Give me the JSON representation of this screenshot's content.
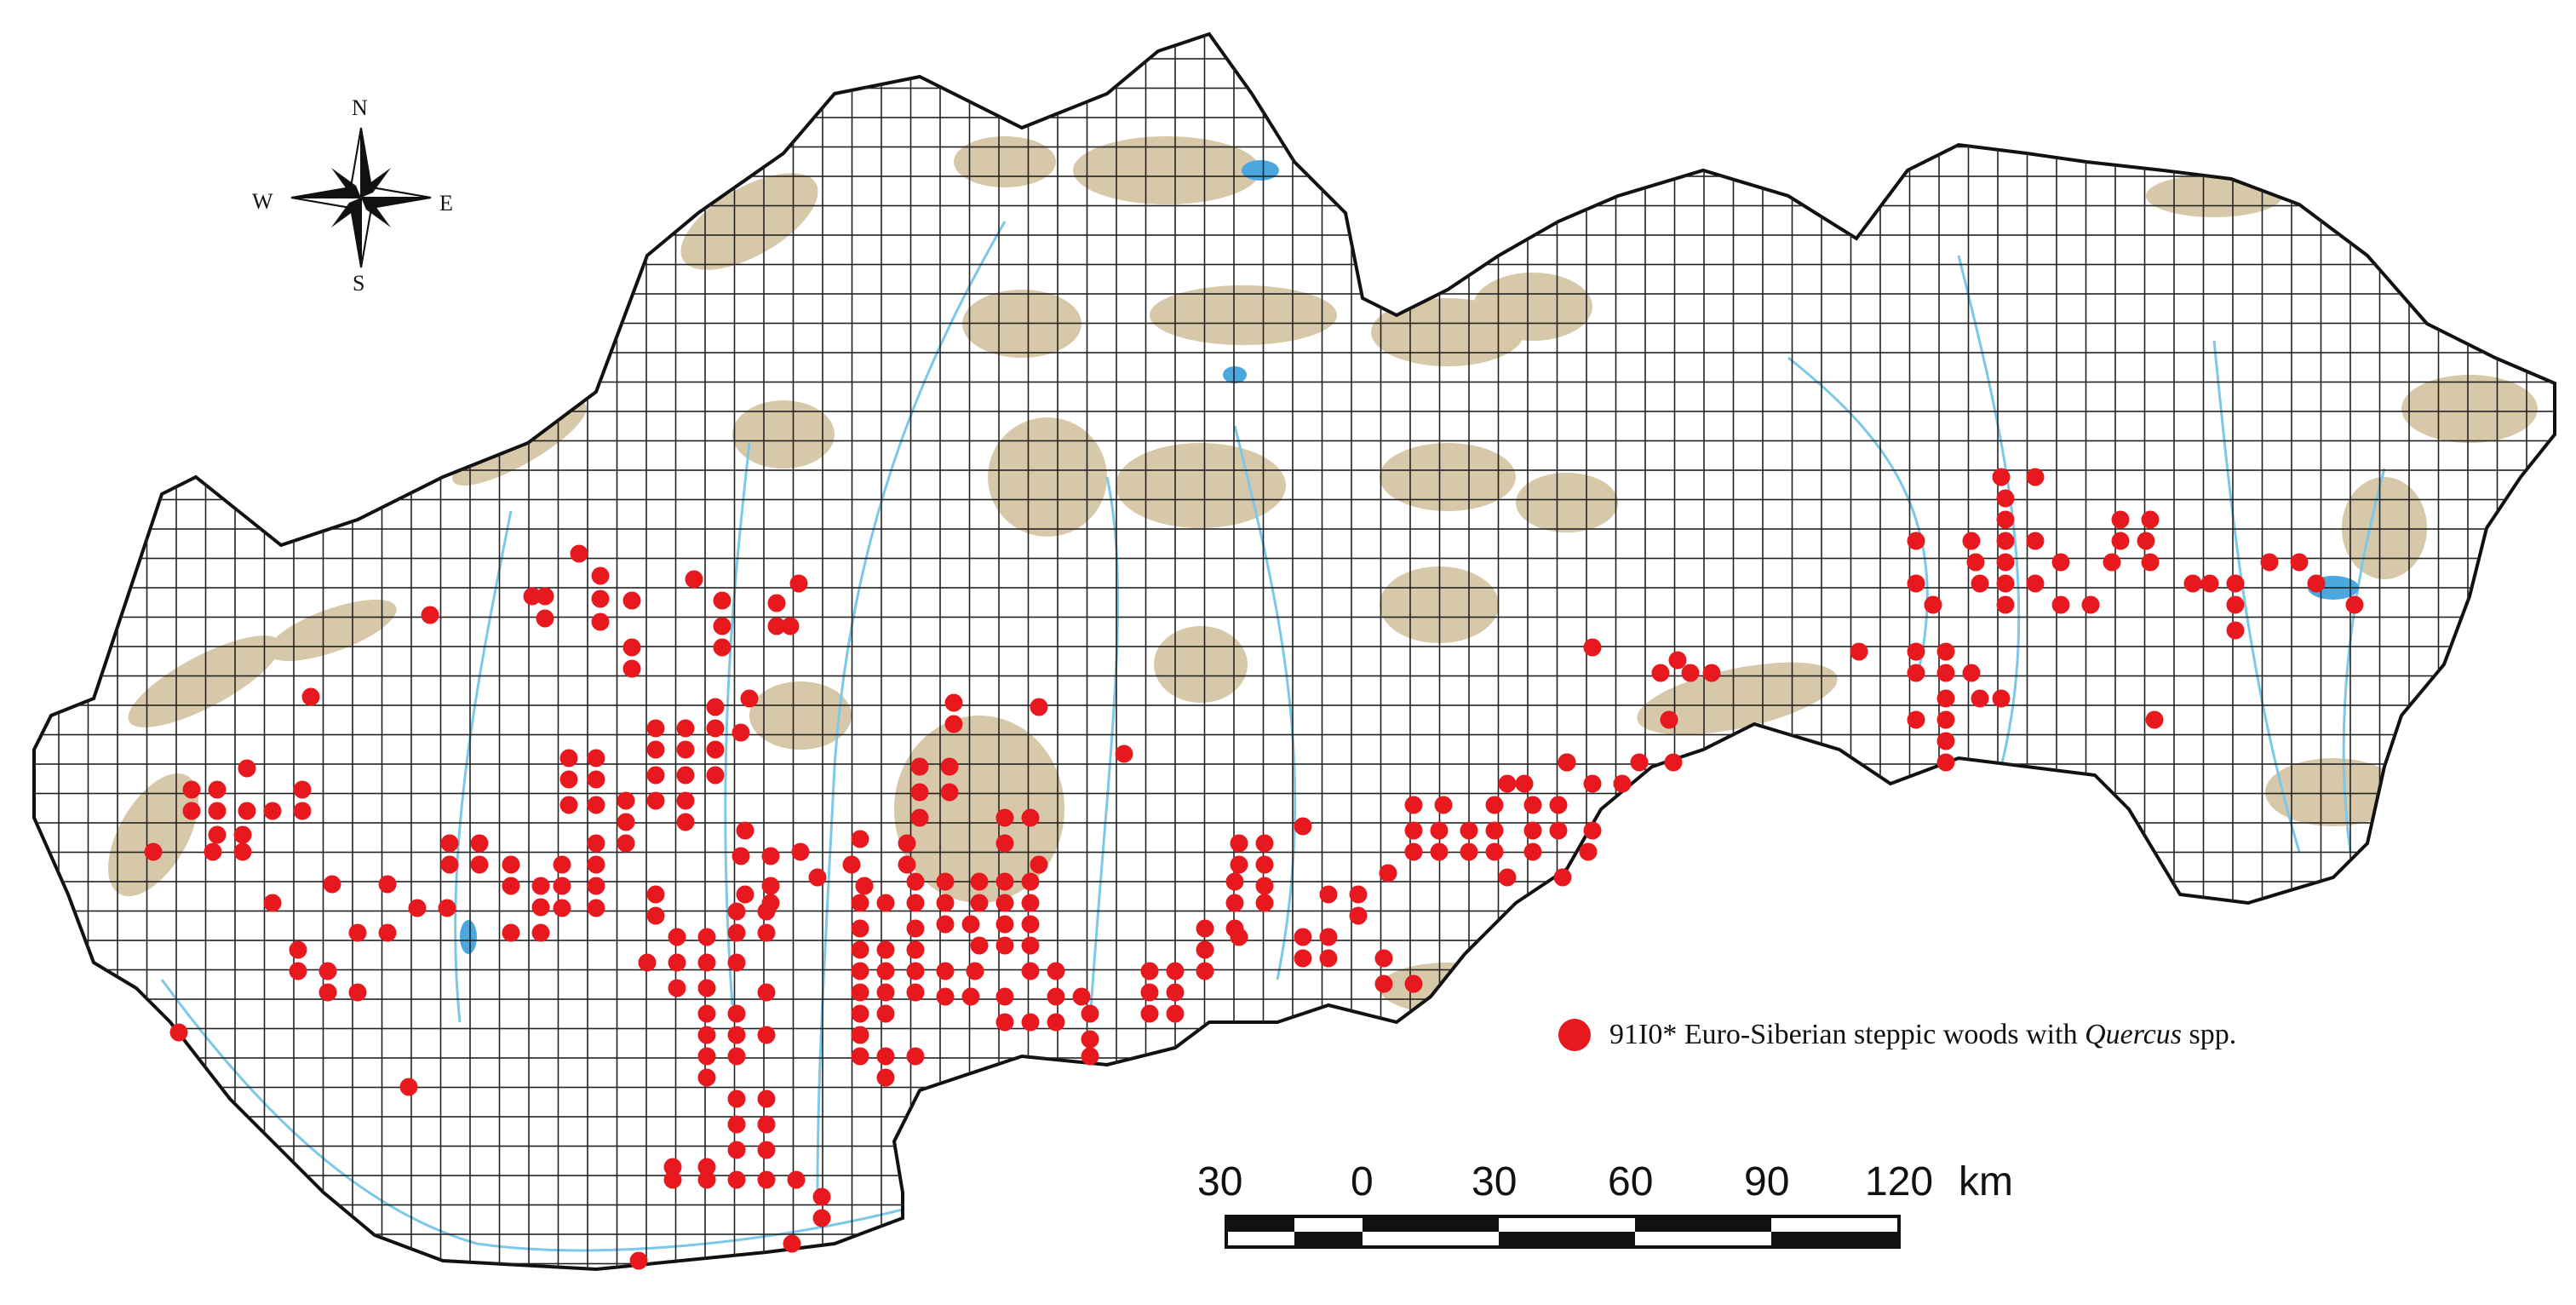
{
  "compass": {
    "n": "N",
    "s": "S",
    "e": "E",
    "w": "W"
  },
  "legend": {
    "code": "91I0* Euro-Siberian steppic woods with",
    "genus": "Quercus",
    "suffix": "spp.",
    "marker_color": "#e8191e"
  },
  "scale_bar": {
    "ticks": [
      "30",
      "0",
      "30",
      "60",
      "90",
      "120"
    ],
    "unit": "km"
  },
  "colors": {
    "mountains": "#d6c8a8",
    "rivers": "#7cc8e8",
    "lakes": "#4aa8df",
    "grid": "#222222",
    "border": "#111111",
    "occurrence": "#e8191e"
  }
}
